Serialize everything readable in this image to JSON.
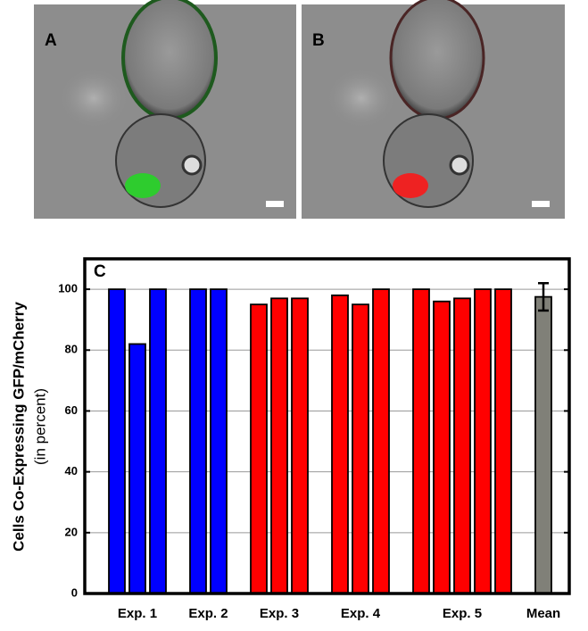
{
  "panels": [
    {
      "label": "A"
    },
    {
      "label": "B"
    }
  ],
  "chart_data": {
    "type": "bar",
    "panel_label": "C",
    "ylabel": "Cells Co-Expressing GFP/mCherry",
    "ylabel_sub": "(in percent)",
    "ylim": [
      0,
      110
    ],
    "yticks": [
      0,
      20,
      40,
      60,
      80,
      100
    ],
    "grid": true,
    "groups": [
      {
        "name": "Exp. 1",
        "color": "#0000ff",
        "values": [
          100,
          82,
          100
        ]
      },
      {
        "name": "Exp. 2",
        "color": "#0000ff",
        "values": [
          100,
          100
        ]
      },
      {
        "name": "Exp. 3",
        "color": "#ff0000",
        "values": [
          95,
          97,
          97
        ]
      },
      {
        "name": "Exp. 4",
        "color": "#ff0000",
        "values": [
          98,
          95,
          100
        ]
      },
      {
        "name": "Exp. 5",
        "color": "#ff0000",
        "values": [
          100,
          96,
          97,
          100,
          100
        ]
      },
      {
        "name": "Mean",
        "color": "#808078",
        "values": [
          97.5
        ],
        "errors": [
          4.5
        ]
      }
    ]
  }
}
